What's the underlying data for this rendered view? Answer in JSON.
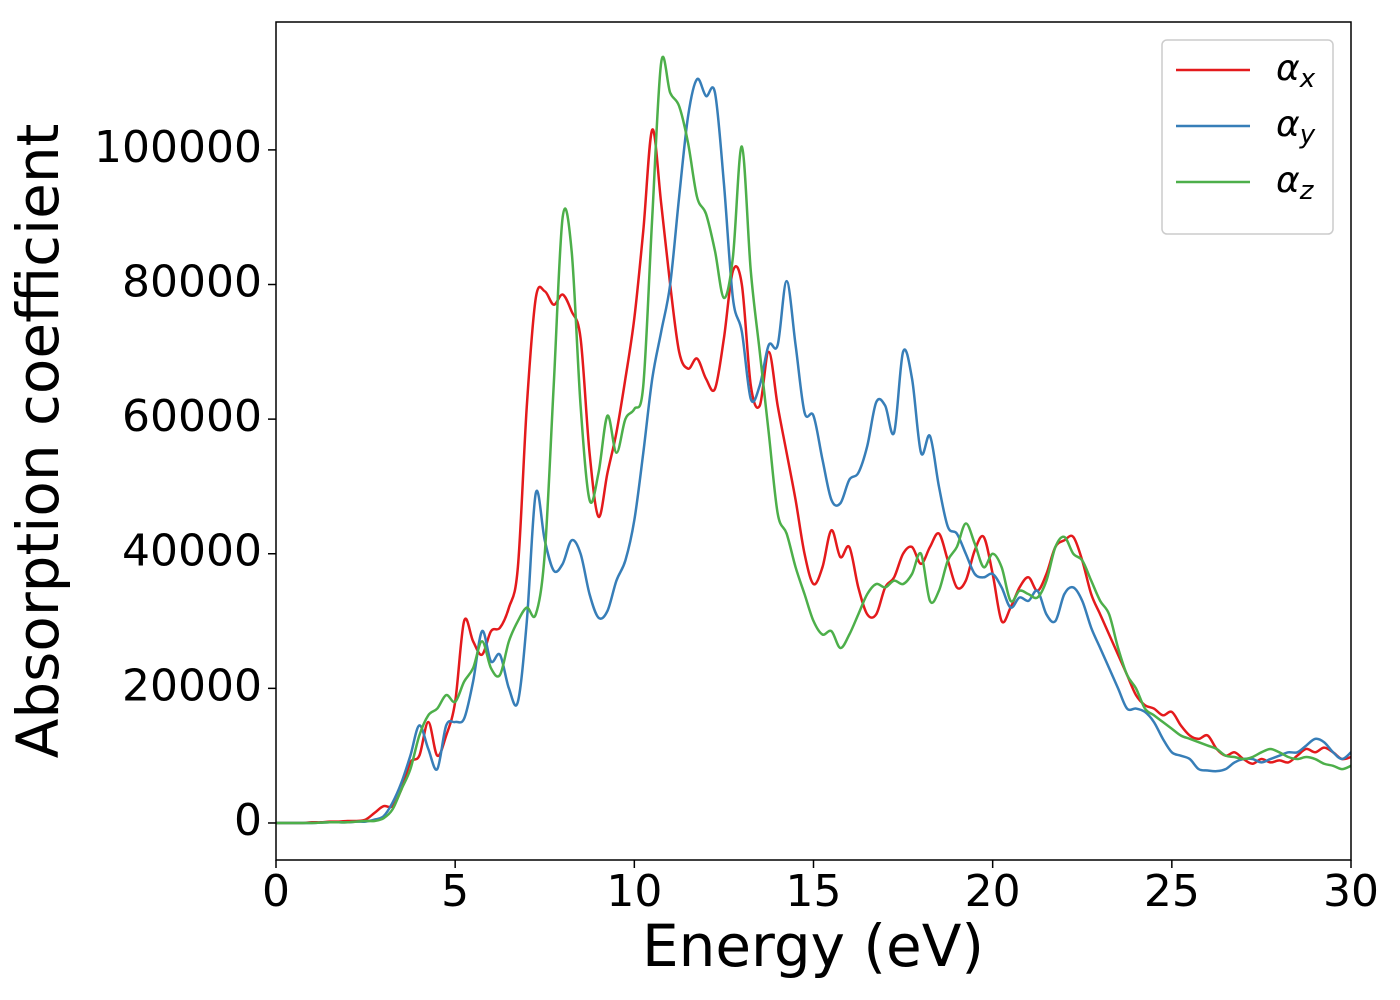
{
  "chart_data": {
    "type": "line",
    "xlabel": "Energy (eV)",
    "ylabel": "Absorption coefficient",
    "xlim": [
      0,
      30
    ],
    "ylim": [
      -5500,
      119000
    ],
    "xticks": [
      0,
      5,
      10,
      15,
      20,
      25,
      30
    ],
    "yticks": [
      0,
      20000,
      40000,
      60000,
      80000,
      100000
    ],
    "grid": false,
    "legend": "upper right",
    "x": [
      0,
      0.25,
      0.5,
      0.75,
      1,
      1.25,
      1.5,
      1.75,
      2,
      2.25,
      2.5,
      2.75,
      3,
      3.25,
      3.5,
      3.75,
      4,
      4.25,
      4.5,
      4.75,
      5,
      5.25,
      5.5,
      5.75,
      6,
      6.25,
      6.5,
      6.75,
      7,
      7.25,
      7.5,
      7.75,
      8,
      8.25,
      8.5,
      8.75,
      9,
      9.25,
      9.5,
      9.75,
      10,
      10.25,
      10.5,
      10.75,
      11,
      11.25,
      11.5,
      11.75,
      12,
      12.25,
      12.5,
      12.75,
      13,
      13.25,
      13.5,
      13.75,
      14,
      14.25,
      14.5,
      14.75,
      15,
      15.25,
      15.5,
      15.75,
      16,
      16.25,
      16.5,
      16.75,
      17,
      17.25,
      17.5,
      17.75,
      18,
      18.25,
      18.5,
      18.75,
      19,
      19.25,
      19.5,
      19.75,
      20,
      20.25,
      20.5,
      20.75,
      21,
      21.25,
      21.5,
      21.75,
      22,
      22.25,
      22.5,
      22.75,
      23,
      23.25,
      23.5,
      23.75,
      24,
      24.25,
      24.5,
      24.75,
      25,
      25.25,
      25.5,
      25.75,
      26,
      26.25,
      26.5,
      26.75,
      27,
      27.25,
      27.5,
      27.75,
      28,
      28.25,
      28.5,
      28.75,
      29,
      29.25,
      29.5,
      29.75,
      30
    ],
    "series": [
      {
        "name": "αx",
        "color": "#e41a1c",
        "values": [
          0,
          0,
          0,
          0,
          100,
          100,
          200,
          200,
          300,
          300,
          500,
          1500,
          2500,
          2500,
          5000,
          9000,
          10000,
          15000,
          10000,
          13000,
          18000,
          30000,
          27000,
          25000,
          28500,
          29000,
          32000,
          38000,
          62000,
          78000,
          79000,
          77000,
          78500,
          76000,
          72000,
          55000,
          45500,
          52000,
          58000,
          66000,
          75000,
          88000,
          103000,
          92000,
          80000,
          70000,
          67500,
          69000,
          66000,
          64500,
          72000,
          82000,
          80000,
          65000,
          62000,
          70000,
          62000,
          55000,
          48000,
          40000,
          35500,
          38000,
          43500,
          39500,
          41000,
          35000,
          31000,
          31000,
          35000,
          36500,
          40000,
          41000,
          38500,
          41000,
          43000,
          39000,
          35000,
          36000,
          40500,
          42500,
          37000,
          30000,
          32000,
          35000,
          36500,
          34500,
          37000,
          41000,
          42000,
          42500,
          39000,
          34000,
          31000,
          28000,
          25000,
          22000,
          19000,
          17500,
          17000,
          16000,
          16500,
          14500,
          13000,
          12500,
          13000,
          11000,
          10000,
          10500,
          9500,
          8800,
          9500,
          9000,
          9300,
          9000,
          10000,
          11000,
          10500,
          11200,
          10500,
          9500,
          9800
        ]
      },
      {
        "name": "αy",
        "color": "#377eb8",
        "values": [
          0,
          0,
          0,
          0,
          0,
          50,
          100,
          100,
          100,
          200,
          200,
          500,
          1000,
          3000,
          6000,
          10000,
          14500,
          11000,
          8000,
          14500,
          15000,
          15500,
          21000,
          28500,
          24000,
          25000,
          20000,
          18000,
          30000,
          49000,
          42000,
          37500,
          38500,
          42000,
          40000,
          34000,
          30500,
          31500,
          36000,
          39000,
          45000,
          55000,
          66000,
          73000,
          80000,
          93000,
          105000,
          110500,
          108000,
          108500,
          95000,
          78000,
          73000,
          63000,
          65000,
          71000,
          71000,
          80500,
          71000,
          61000,
          60500,
          54000,
          48000,
          47500,
          51000,
          52000,
          56000,
          62500,
          62000,
          58000,
          70000,
          66000,
          55000,
          57500,
          50000,
          44000,
          43000,
          40000,
          37000,
          36500,
          37000,
          35000,
          32000,
          33500,
          33000,
          34500,
          31000,
          30000,
          34000,
          35000,
          33000,
          29000,
          26000,
          23000,
          20000,
          17000,
          17000,
          16500,
          15000,
          12500,
          10500,
          10000,
          9500,
          8000,
          7800,
          7700,
          8000,
          9000,
          9500,
          9500,
          9000,
          9500,
          10000,
          10500,
          10500,
          11500,
          12500,
          12000,
          10500,
          9500,
          10500
        ]
      },
      {
        "name": "αz",
        "color": "#4daf4a",
        "values": [
          0,
          0,
          0,
          0,
          0,
          50,
          100,
          100,
          100,
          200,
          300,
          300,
          700,
          2000,
          5000,
          8000,
          13000,
          16000,
          17000,
          19000,
          18000,
          21000,
          23000,
          27000,
          23000,
          22000,
          27000,
          30000,
          32000,
          31000,
          40000,
          65000,
          90000,
          85000,
          62000,
          48000,
          52000,
          60500,
          55000,
          60000,
          61500,
          65000,
          90000,
          113000,
          108500,
          106500,
          101000,
          93000,
          90500,
          85000,
          78000,
          84000,
          100500,
          82000,
          70000,
          58000,
          46000,
          43000,
          38000,
          34000,
          30000,
          28000,
          28500,
          26000,
          28000,
          31000,
          34000,
          35500,
          35000,
          36000,
          35500,
          37000,
          40000,
          33000,
          34500,
          39000,
          41000,
          44500,
          41500,
          38000,
          40000,
          38000,
          33000,
          34500,
          34000,
          33500,
          36000,
          41000,
          42500,
          40000,
          39000,
          36000,
          33000,
          31000,
          26000,
          22000,
          20000,
          17000,
          16000,
          15000,
          14000,
          13000,
          12500,
          12000,
          11500,
          11000,
          10000,
          9800,
          9500,
          9800,
          10500,
          11000,
          10500,
          9800,
          9500,
          9800,
          9500,
          8800,
          8500,
          8000,
          8500
        ]
      }
    ]
  }
}
